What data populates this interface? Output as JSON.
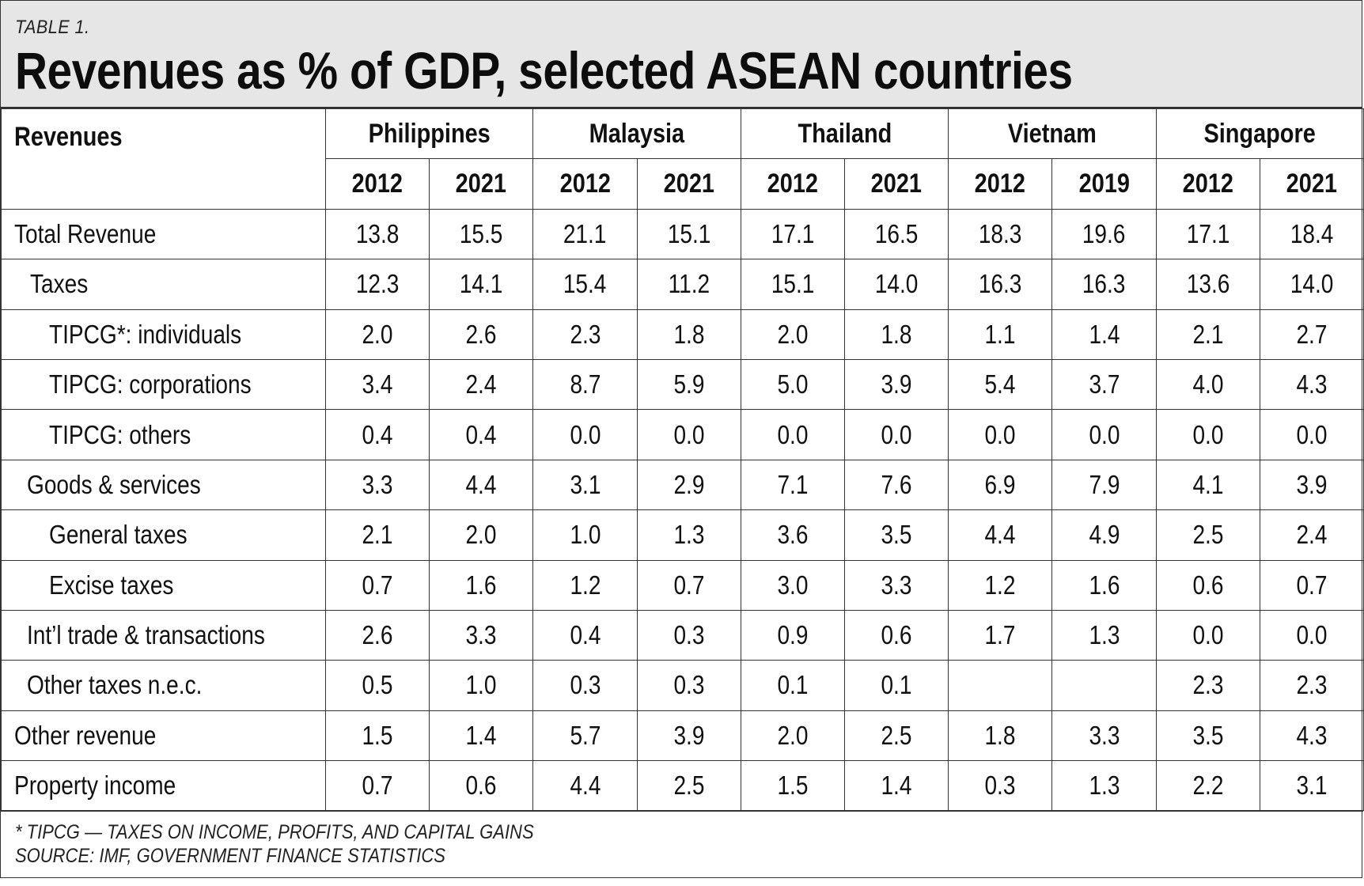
{
  "header": {
    "table_label": "TABLE 1.",
    "title": "Revenues as % of GDP, selected ASEAN countries"
  },
  "table": {
    "row_header": "Revenues",
    "countries": [
      "Philippines",
      "Malaysia",
      "Thailand",
      "Vietnam",
      "Singapore"
    ],
    "years": [
      "2012",
      "2021",
      "2012",
      "2021",
      "2012",
      "2021",
      "2012",
      "2019",
      "2012",
      "2021"
    ],
    "rows": [
      {
        "label": "Total Revenue",
        "values": [
          "13.8",
          "15.5",
          "21.1",
          "15.1",
          "17.1",
          "16.5",
          "18.3",
          "19.6",
          "17.1",
          "18.4"
        ]
      },
      {
        "label": "Taxes",
        "values": [
          "12.3",
          "14.1",
          "15.4",
          "11.2",
          "15.1",
          "14.0",
          "16.3",
          "16.3",
          "13.6",
          "14.0"
        ]
      },
      {
        "label": "TIPCG*: individuals",
        "values": [
          "2.0",
          "2.6",
          "2.3",
          "1.8",
          "2.0",
          "1.8",
          "1.1",
          "1.4",
          "2.1",
          "2.7"
        ]
      },
      {
        "label": "TIPCG: corporations",
        "values": [
          "3.4",
          "2.4",
          "8.7",
          "5.9",
          "5.0",
          "3.9",
          "5.4",
          "3.7",
          "4.0",
          "4.3"
        ]
      },
      {
        "label": "TIPCG: others",
        "values": [
          "0.4",
          "0.4",
          "0.0",
          "0.0",
          "0.0",
          "0.0",
          "0.0",
          "0.0",
          "0.0",
          "0.0"
        ]
      },
      {
        "label": "Goods & services",
        "values": [
          "3.3",
          "4.4",
          "3.1",
          "2.9",
          "7.1",
          "7.6",
          "6.9",
          "7.9",
          "4.1",
          "3.9"
        ]
      },
      {
        "label": "General taxes",
        "values": [
          "2.1",
          "2.0",
          "1.0",
          "1.3",
          "3.6",
          "3.5",
          "4.4",
          "4.9",
          "2.5",
          "2.4"
        ]
      },
      {
        "label": "Excise taxes",
        "values": [
          "0.7",
          "1.6",
          "1.2",
          "0.7",
          "3.0",
          "3.3",
          "1.2",
          "1.6",
          "0.6",
          "0.7"
        ]
      },
      {
        "label": "Int’l trade & transactions",
        "values": [
          "2.6",
          "3.3",
          "0.4",
          "0.3",
          "0.9",
          "0.6",
          "1.7",
          "1.3",
          "0.0",
          "0.0"
        ]
      },
      {
        "label": "Other taxes n.e.c.",
        "values": [
          "0.5",
          "1.0",
          "0.3",
          "0.3",
          "0.1",
          "0.1",
          "",
          "",
          "2.3",
          "2.3"
        ]
      },
      {
        "label": "Other revenue",
        "values": [
          "1.5",
          "1.4",
          "5.7",
          "3.9",
          "2.0",
          "2.5",
          "1.8",
          "3.3",
          "3.5",
          "4.3"
        ]
      },
      {
        "label": "Property income",
        "values": [
          "0.7",
          "0.6",
          "4.4",
          "2.5",
          "1.5",
          "1.4",
          "0.3",
          "1.3",
          "2.2",
          "3.1"
        ]
      }
    ]
  },
  "footer": {
    "note": "* TIPCG — TAXES ON INCOME, PROFITS, AND CAPITAL GAINS",
    "source": "SOURCE: IMF, GOVERNMENT FINANCE STATISTICS"
  }
}
